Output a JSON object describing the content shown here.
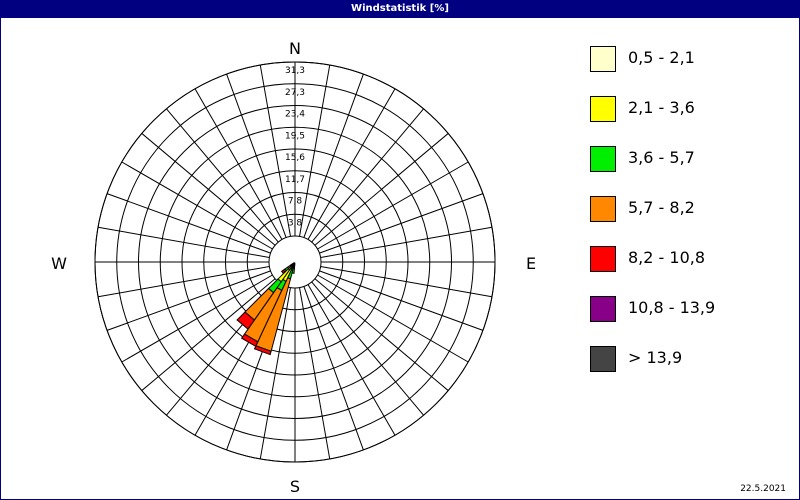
{
  "window": {
    "title": "Windstatistik [%]"
  },
  "date": "22.5.2021",
  "chart_data": {
    "type": "polar-stacked-bar",
    "title": "Windstatistik [%]",
    "directions": [
      "N",
      "E",
      "S",
      "W"
    ],
    "radial_ticks": [
      "3,8",
      "7,8",
      "11,7",
      "15,6",
      "19,5",
      "23,4",
      "27,3",
      "31,3"
    ],
    "radial_max": 31.3,
    "sector_count": 36,
    "calm_radius_value": 3.0,
    "speed_classes": [
      {
        "label": "0,5 - 2,1",
        "color": "#ffffcc"
      },
      {
        "label": "2,1 - 3,6",
        "color": "#ffff00"
      },
      {
        "label": "3,6 - 5,7",
        "color": "#00ee00"
      },
      {
        "label": "5,7 - 8,2",
        "color": "#ff8800"
      },
      {
        "label": "8,2 - 10,8",
        "color": "#ff0000"
      },
      {
        "label": "10,8 - 13,9",
        "color": "#880088"
      },
      {
        "label": " > 13,9",
        "color": "#444444"
      }
    ],
    "sectors": [
      {
        "direction_deg": 200,
        "values": [
          0.4,
          0.9,
          1.6,
          13.5,
          0.6,
          0,
          0
        ]
      },
      {
        "direction_deg": 210,
        "values": [
          1.2,
          2.4,
          1.8,
          10.2,
          0.9,
          0,
          0
        ]
      },
      {
        "direction_deg": 220,
        "values": [
          1.5,
          2.6,
          2.4,
          6.0,
          2.0,
          0,
          0
        ]
      },
      {
        "direction_deg": 230,
        "values": [
          0.6,
          0.8,
          0.6,
          0.3,
          0.4,
          0,
          0
        ]
      },
      {
        "direction_deg": 190,
        "values": [
          0.3,
          0.6,
          0.9,
          0,
          0,
          0,
          0
        ]
      }
    ]
  }
}
